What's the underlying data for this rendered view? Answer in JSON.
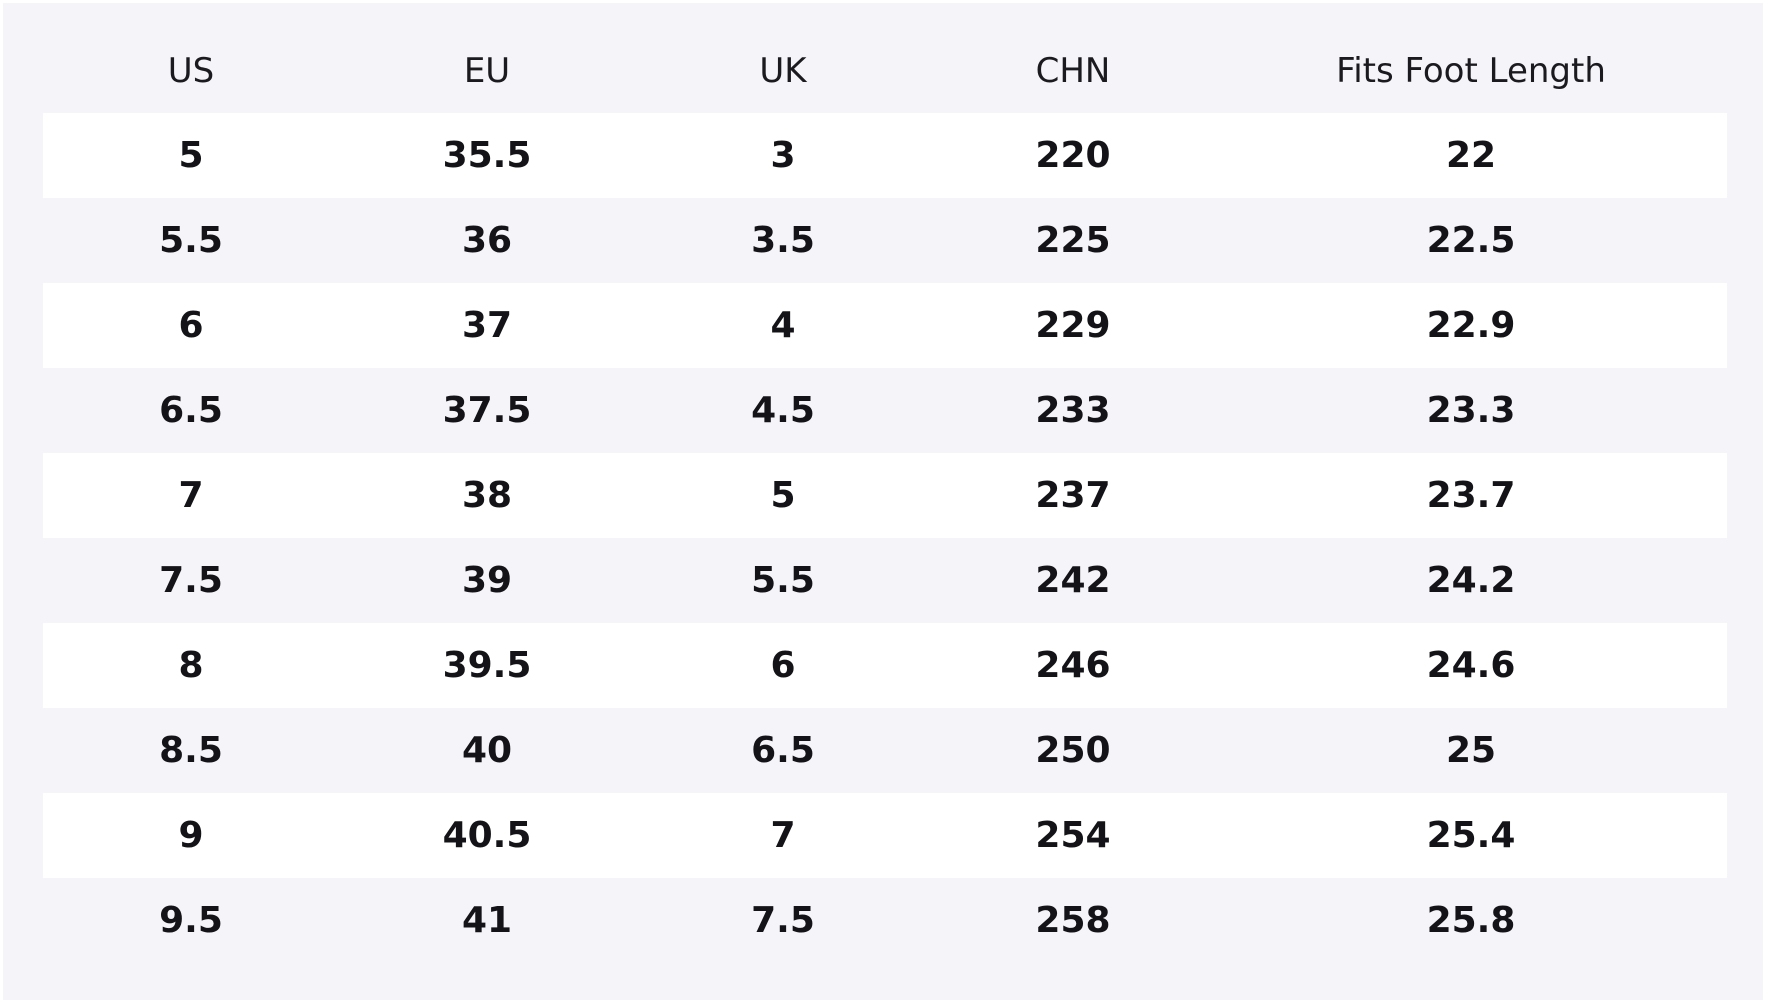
{
  "table": {
    "headers": [
      "US",
      "EU",
      "UK",
      "CHN",
      "Fits Foot Length"
    ],
    "rows": [
      [
        "5",
        "35.5",
        "3",
        "220",
        "22"
      ],
      [
        "5.5",
        "36",
        "3.5",
        "225",
        "22.5"
      ],
      [
        "6",
        "37",
        "4",
        "229",
        "22.9"
      ],
      [
        "6.5",
        "37.5",
        "4.5",
        "233",
        "23.3"
      ],
      [
        "7",
        "38",
        "5",
        "237",
        "23.7"
      ],
      [
        "7.5",
        "39",
        "5.5",
        "242",
        "24.2"
      ],
      [
        "8",
        "39.5",
        "6",
        "246",
        "24.6"
      ],
      [
        "8.5",
        "40",
        "6.5",
        "250",
        "25"
      ],
      [
        "9",
        "40.5",
        "7",
        "254",
        "25.4"
      ],
      [
        "9.5",
        "41",
        "7.5",
        "258",
        "25.8"
      ]
    ]
  },
  "colors": {
    "panel_background": "#f4f4f9",
    "stripe_row": "#ffffff",
    "text": "#141418"
  }
}
